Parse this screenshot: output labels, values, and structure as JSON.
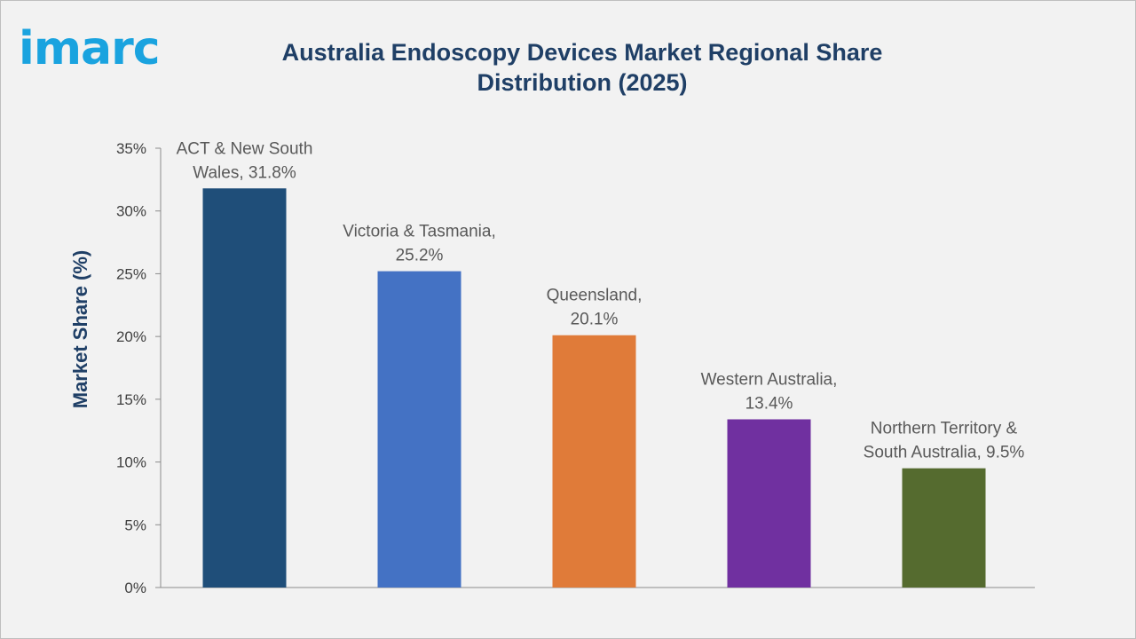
{
  "logo": {
    "text": "imarc"
  },
  "chart_data": {
    "type": "bar",
    "title": "Australia Endoscopy Devices Market Regional Share Distribution (2025)",
    "xlabel": "",
    "ylabel": "Market Share (%)",
    "ylim": [
      0,
      35
    ],
    "yticks": [
      0,
      5,
      10,
      15,
      20,
      25,
      30,
      35
    ],
    "ytick_labels": [
      "0%",
      "5%",
      "10%",
      "15%",
      "20%",
      "25%",
      "30%",
      "35%"
    ],
    "grid": false,
    "legend": "none",
    "categories": [
      "ACT & New South Wales",
      "Victoria & Tasmania",
      "Queensland",
      "Western Australia",
      "Northern Territory & South Australia"
    ],
    "values": [
      31.8,
      25.2,
      20.1,
      13.4,
      9.5
    ],
    "data_labels": [
      [
        "ACT & New South",
        "Wales, 31.8%"
      ],
      [
        "Victoria & Tasmania,",
        "25.2%"
      ],
      [
        "Queensland,",
        "20.1%"
      ],
      [
        "Western Australia,",
        "13.4%"
      ],
      [
        "Northern Territory &",
        "South Australia, 9.5%"
      ]
    ],
    "colors": [
      "#1f4e79",
      "#4472c4",
      "#e07b39",
      "#7030a0",
      "#556b2f"
    ]
  }
}
